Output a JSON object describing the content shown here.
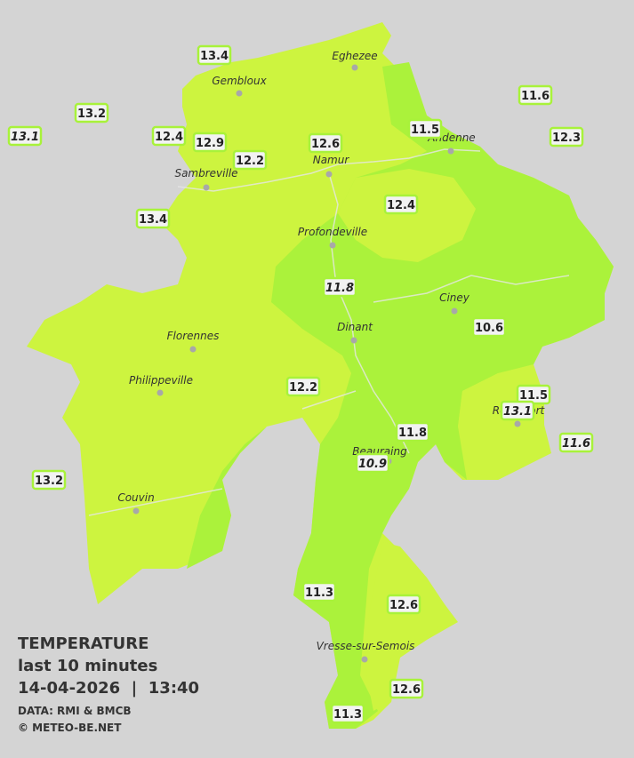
{
  "map": {
    "cities": [
      "Eghezee",
      "Gembloux",
      "Andenne",
      "Namur",
      "Sambreville",
      "Profondeville",
      "Ciney",
      "Dinant",
      "Florennes",
      "Philippeville",
      "Rochefort",
      "Beauraing",
      "Couvin",
      "Vresse-sur-Semois"
    ],
    "stations": [
      {
        "value": "13.4",
        "italic": false
      },
      {
        "value": "13.2",
        "italic": false
      },
      {
        "value": "13.1",
        "italic": true
      },
      {
        "value": "12.4",
        "italic": false
      },
      {
        "value": "12.9",
        "italic": false
      },
      {
        "value": "12.2",
        "italic": false
      },
      {
        "value": "12.6",
        "italic": false
      },
      {
        "value": "11.5",
        "italic": false
      },
      {
        "value": "11.6",
        "italic": false
      },
      {
        "value": "12.3",
        "italic": false
      },
      {
        "value": "13.4",
        "italic": false
      },
      {
        "value": "12.4",
        "italic": false
      },
      {
        "value": "11.8",
        "italic": true
      },
      {
        "value": "10.6",
        "italic": false
      },
      {
        "value": "12.2",
        "italic": false
      },
      {
        "value": "11.5",
        "italic": false
      },
      {
        "value": "13.1",
        "italic": true
      },
      {
        "value": "11.8",
        "italic": false
      },
      {
        "value": "11.6",
        "italic": true
      },
      {
        "value": "10.9",
        "italic": true
      },
      {
        "value": "13.2",
        "italic": false
      },
      {
        "value": "11.3",
        "italic": false
      },
      {
        "value": "12.6",
        "italic": false
      },
      {
        "value": "12.6",
        "italic": false
      },
      {
        "value": "11.3",
        "italic": false
      }
    ],
    "legend": {
      "title": "TEMPERATURE",
      "subtitle": "last 10 minutes",
      "timestamp": "14-04-2026  |  13:40",
      "source": "DATA: RMI & BMCB",
      "copyright": "© METEO-BE.NET"
    }
  }
}
